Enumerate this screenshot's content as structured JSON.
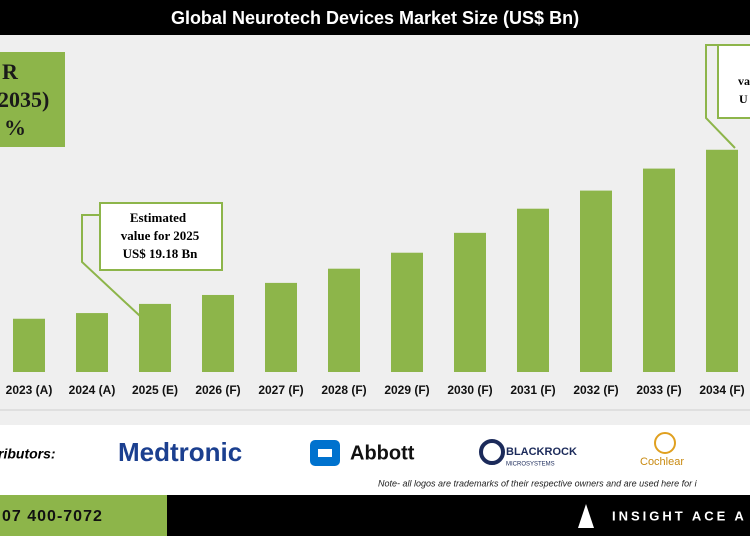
{
  "chart_data": {
    "type": "bar",
    "title": "Global Neurotech Devices Market Size (US$ Bn)",
    "categories": [
      "2023 (A)",
      "2024 (A)",
      "2025 (E)",
      "2026 (F)",
      "2027 (F)",
      "2028 (F)",
      "2029 (F)",
      "2030 (F)",
      "2031 (F)",
      "2032 (F)",
      "2033 (F)",
      "2034 (F)"
    ],
    "values": [
      15.0,
      16.6,
      19.18,
      21.7,
      25.1,
      29.1,
      33.6,
      39.2,
      46.0,
      51.1,
      57.3,
      62.6
    ],
    "color": "#8db54a",
    "cagr_box": [
      "R",
      "2035)",
      "%"
    ],
    "callout_2025": [
      "Estimated",
      "value for 2025",
      "US$ 19.18 Bn"
    ],
    "callout_right": [
      "va",
      "U"
    ]
  },
  "footer": {
    "distributors_label": "ributors:",
    "logos": [
      "Medtronic",
      "Abbott",
      "BLACKROCK",
      "MICROSYSTEMS",
      "Cochlear"
    ],
    "note": "Note- all logos are trademarks of their respective owners and are used here for i",
    "phone": "07 400-7072",
    "brand": "INSIGHT ACE A"
  }
}
